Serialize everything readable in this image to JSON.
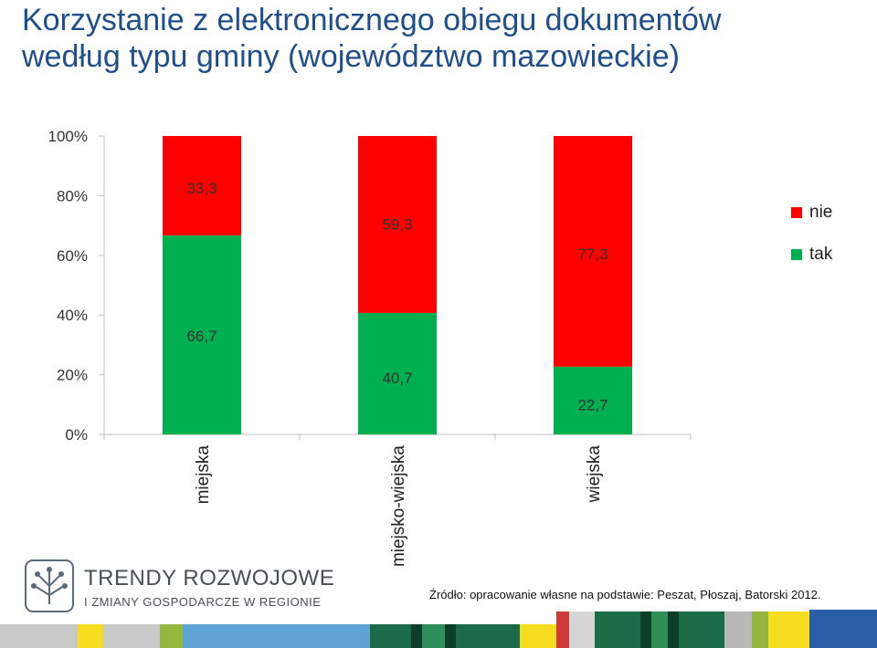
{
  "title_line1": "Korzystanie z elektronicznego obiegu dokumentów",
  "title_line2": "według typu gminy (województwo mazowieckie)",
  "chart_data": {
    "type": "bar",
    "stacked": "percent",
    "categories": [
      "miejska",
      "miejsko-wiejska",
      "wiejska"
    ],
    "series": [
      {
        "name": "tak",
        "values": [
          66.7,
          40.7,
          22.7
        ],
        "color": "#00b050"
      },
      {
        "name": "nie",
        "values": [
          33.3,
          59.3,
          77.3
        ],
        "color": "#ff0000"
      }
    ],
    "data_labels": {
      "tak": [
        "66,7",
        "40,7",
        "22,7"
      ],
      "nie": [
        "33,3",
        "59,3",
        "77,3"
      ]
    },
    "yticks": [
      "0%",
      "20%",
      "40%",
      "60%",
      "80%",
      "100%"
    ],
    "ylim": [
      0,
      100
    ],
    "legend_position": "right",
    "legend_order": [
      "nie",
      "tak"
    ],
    "grid": false
  },
  "legend": {
    "nie": "nie",
    "tak": "tak"
  },
  "logo": {
    "line1": "TRENDY ROZWOJOWE",
    "line2": "I ZMIANY GOSPODARCZE W REGIONIE",
    "icon": "circuit-hand-icon"
  },
  "source": "Źródło: opracowanie własne na podstawie: Peszat, Płoszaj, Batorski 2012."
}
